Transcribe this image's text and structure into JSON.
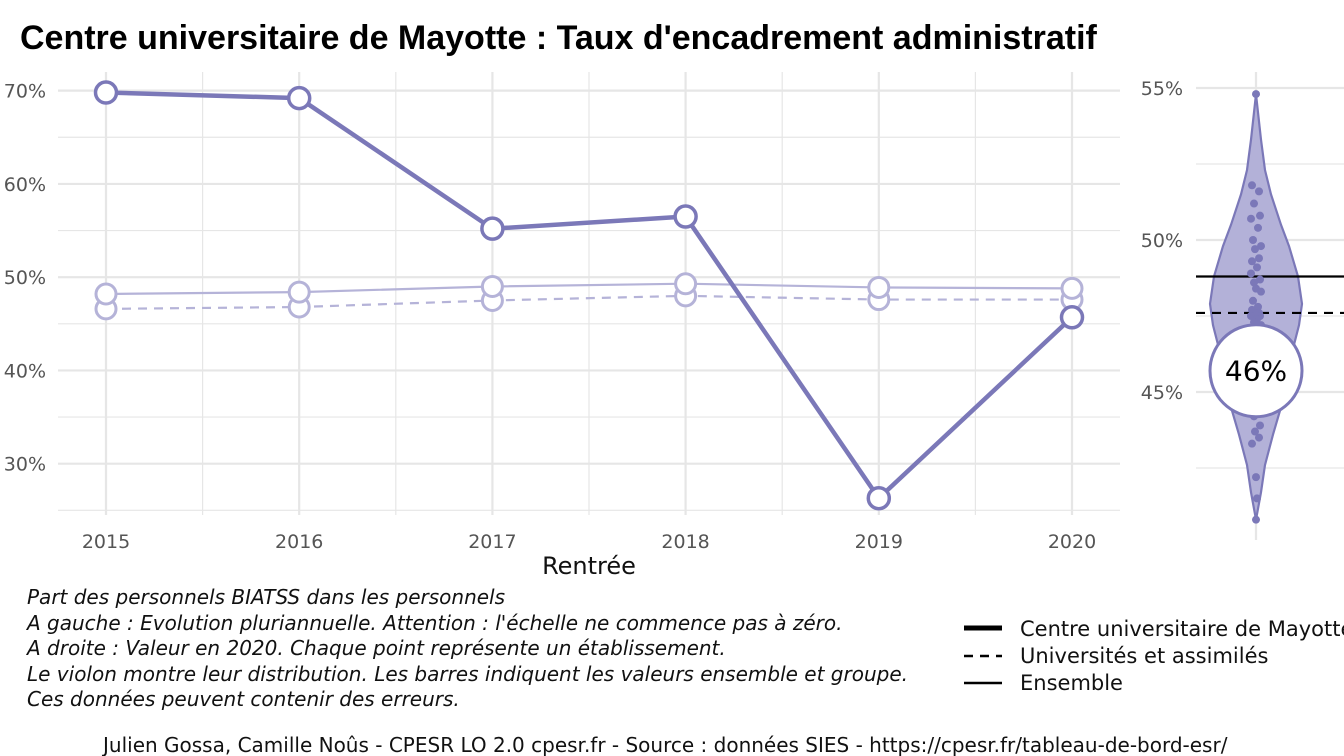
{
  "title": "Centre universitaire de Mayotte  :  Taux d'encadrement administratif",
  "colors": {
    "main": "#7b78b8",
    "light": "#b5b3d8",
    "violin_fill": "#b3b1d8",
    "grid": "#e6e6e6",
    "bar": "#000000"
  },
  "chart_data": [
    {
      "type": "line",
      "x": [
        2015,
        2016,
        2017,
        2018,
        2019,
        2020
      ],
      "xlabel": "Rentrée",
      "ylabel": "",
      "y_ticks": [
        "30%",
        "40%",
        "50%",
        "60%",
        "70%"
      ],
      "y_tick_values": [
        30,
        40,
        50,
        60,
        70
      ],
      "ylim": [
        24.5,
        72
      ],
      "series": [
        {
          "name": "Centre universitaire de Mayotte",
          "style": "solid-thick",
          "values": [
            69.8,
            69.2,
            55.2,
            56.5,
            26.3,
            45.7
          ]
        },
        {
          "name": "Universités et assimilés",
          "style": "dashed",
          "values": [
            46.6,
            46.8,
            47.5,
            48.0,
            47.6,
            47.6
          ]
        },
        {
          "name": "Ensemble",
          "style": "solid-thin",
          "values": [
            48.2,
            48.4,
            49.0,
            49.3,
            48.9,
            48.8
          ]
        }
      ],
      "grid": true
    },
    {
      "type": "scatter",
      "subtype": "violin",
      "year": 2020,
      "y_ticks": [
        "45%",
        "50%",
        "55%"
      ],
      "y_tick_values": [
        45,
        50,
        55
      ],
      "ylim": [
        40.8,
        56
      ],
      "highlight_value": 45.7,
      "highlight_label": "46%",
      "ensemble_value": 48.8,
      "universites_value": 47.6,
      "points": [
        54.8,
        51.8,
        51.6,
        51.2,
        50.8,
        50.7,
        50.4,
        50.0,
        49.8,
        49.7,
        49.4,
        49.3,
        49.1,
        48.9,
        48.7,
        48.6,
        48.4,
        48.3,
        48.0,
        47.8,
        47.7,
        47.6,
        47.6,
        47.5,
        47.5,
        47.4,
        47.3,
        47.2,
        47.0,
        46.8,
        46.6,
        46.3,
        46.0,
        45.7,
        45.4,
        45.2,
        45.0,
        44.8,
        44.5,
        44.2,
        43.9,
        43.7,
        43.5,
        43.3,
        42.2,
        41.5,
        40.8
      ]
    }
  ],
  "caption": [
    "Part des personnels BIATSS dans les personnels",
    "A gauche : Evolution pluriannuelle. Attention : l'échelle ne commence pas à zéro.",
    "A droite : Valeur en 2020. Chaque point représente un établissement.",
    "Le violon montre leur distribution. Les barres indiquent les valeurs ensemble et groupe.",
    "Ces données peuvent contenir des erreurs."
  ],
  "legend": [
    {
      "label": "Centre universitaire de Mayotte",
      "style": "thick"
    },
    {
      "label": "Universités et assimilés",
      "style": "dashed"
    },
    {
      "label": "Ensemble",
      "style": "thin"
    }
  ],
  "source": "Julien Gossa, Camille Noûs - CPESR LO 2.0 cpesr.fr - Source : données SIES - https://cpesr.fr/tableau-de-bord-esr/"
}
